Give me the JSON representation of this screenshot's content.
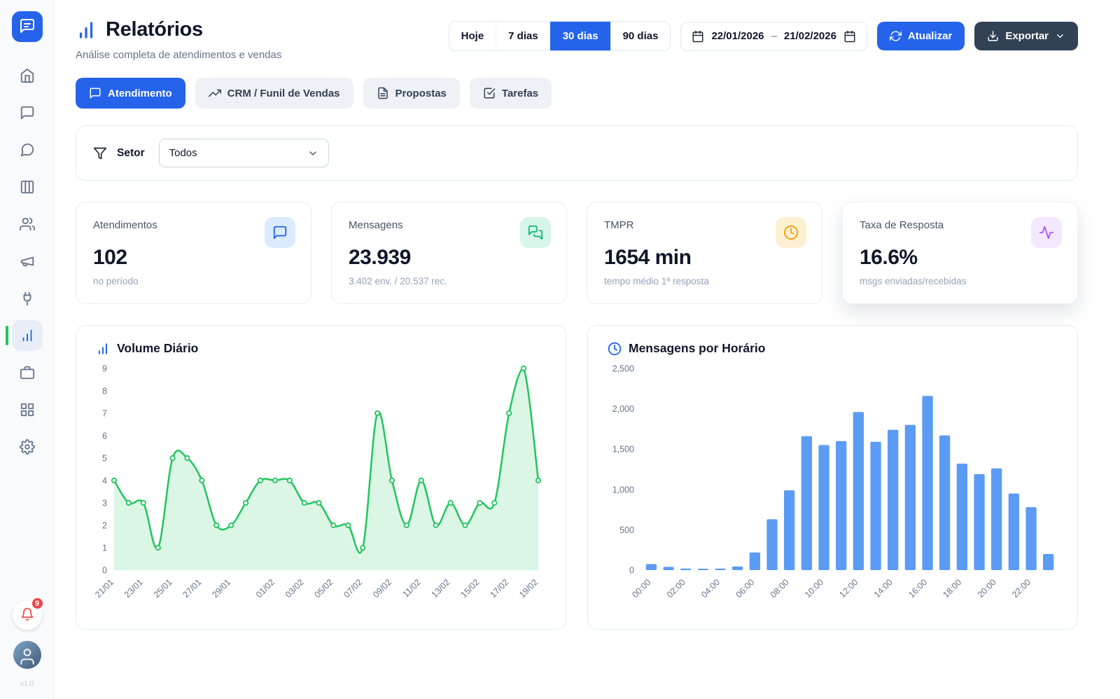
{
  "app": {
    "accent_color": "#2563eb",
    "indicator_color": "#22c55e",
    "dark_button_color": "#334155"
  },
  "sidebar": {
    "logo_icon": "chat-logo-icon",
    "items": [
      {
        "name": "home",
        "icon": "home-icon"
      },
      {
        "name": "chats",
        "icon": "message-square-icon"
      },
      {
        "name": "conversations",
        "icon": "message-circle-icon"
      },
      {
        "name": "kanban",
        "icon": "kanban-icon"
      },
      {
        "name": "contacts",
        "icon": "users-icon"
      },
      {
        "name": "campaigns",
        "icon": "megaphone-icon"
      },
      {
        "name": "integrations",
        "icon": "plug-icon"
      },
      {
        "name": "reports",
        "icon": "bar-chart-icon",
        "active": true
      },
      {
        "name": "business",
        "icon": "briefcase-icon"
      },
      {
        "name": "apps",
        "icon": "grid-icon"
      },
      {
        "name": "settings",
        "icon": "settings-icon"
      }
    ],
    "notification_count": "9",
    "version": "v1.0"
  },
  "header": {
    "title": "Relatórios",
    "subtitle": "Análise completa de atendimentos e vendas",
    "range_options": [
      "Hoje",
      "7 dias",
      "30 dias",
      "90 dias"
    ],
    "active_range": "30 dias",
    "date_from": "22/01/2026",
    "date_separator": "–",
    "date_to": "21/02/2026",
    "refresh_label": "Atualizar",
    "export_label": "Exportar"
  },
  "tabs": [
    {
      "label": "Atendimento",
      "icon": "message-square-icon",
      "active": true
    },
    {
      "label": "CRM / Funil de Vendas",
      "icon": "trending-up-icon"
    },
    {
      "label": "Propostas",
      "icon": "file-text-icon"
    },
    {
      "label": "Tarefas",
      "icon": "check-square-icon"
    }
  ],
  "filter": {
    "label": "Setor",
    "value": "Todos"
  },
  "stats": [
    {
      "label": "Atendimentos",
      "value": "102",
      "caption": "no período",
      "icon": "message-square-icon",
      "icon_color": "#2563eb",
      "icon_bg": "#dbeafe"
    },
    {
      "label": "Mensagens",
      "value": "23.939",
      "caption": "3.402 env. / 20.537 rec.",
      "icon": "messages-icon",
      "icon_color": "#10b981",
      "icon_bg": "#d7f5e9"
    },
    {
      "label": "TMPR",
      "value": "1654 min",
      "caption": "tempo médio 1ª resposta",
      "icon": "clock-icon",
      "icon_color": "#f59e0b",
      "icon_bg": "#fdf0d2"
    },
    {
      "label": "Taxa de Resposta",
      "value": "16.6%",
      "caption": "msgs enviadas/recebidas",
      "icon": "activity-icon",
      "icon_color": "#a855f7",
      "icon_bg": "#f3e8ff",
      "elevated": true
    }
  ],
  "chart_data": [
    {
      "type": "line",
      "title": "Volume Diário",
      "title_icon": "bar-chart-icon",
      "labels": [
        "21/01",
        "22/01",
        "23/01",
        "24/01",
        "25/01",
        "26/01",
        "27/01",
        "28/01",
        "29/01",
        "30/01",
        "31/01",
        "01/02",
        "02/02",
        "03/02",
        "04/02",
        "05/02",
        "06/02",
        "07/02",
        "08/02",
        "09/02",
        "10/02",
        "11/02",
        "12/02",
        "13/02",
        "14/02",
        "15/02",
        "16/02",
        "17/02",
        "18/02",
        "19/02"
      ],
      "tick_indices": [
        0,
        2,
        4,
        6,
        8,
        11,
        13,
        15,
        17,
        19,
        21,
        23,
        25,
        27,
        29
      ],
      "values": [
        4,
        3,
        3,
        1,
        5,
        5,
        4,
        2,
        2,
        3,
        4,
        4,
        4,
        3,
        3,
        2,
        2,
        1,
        7,
        4,
        2,
        4,
        2,
        3,
        2,
        3,
        3,
        7,
        9,
        4
      ],
      "ylim": [
        0,
        9
      ],
      "yticks": [
        0,
        1,
        2,
        3,
        4,
        5,
        6,
        7,
        8,
        9
      ],
      "color": "#22c55e",
      "grid": false,
      "legend": false
    },
    {
      "type": "bar",
      "title": "Mensagens por Horário",
      "title_icon": "clock-icon",
      "categories": [
        "00:00",
        "01:00",
        "02:00",
        "03:00",
        "04:00",
        "05:00",
        "06:00",
        "07:00",
        "08:00",
        "09:00",
        "10:00",
        "11:00",
        "12:00",
        "13:00",
        "14:00",
        "15:00",
        "16:00",
        "17:00",
        "18:00",
        "19:00",
        "20:00",
        "21:00",
        "22:00",
        "23:00"
      ],
      "values": [
        75,
        40,
        20,
        10,
        20,
        45,
        220,
        630,
        990,
        1660,
        1550,
        1600,
        1960,
        1590,
        1740,
        1800,
        2160,
        1670,
        1320,
        1190,
        1260,
        950,
        780,
        200
      ],
      "ylim": [
        0,
        2500
      ],
      "yticks": [
        0,
        500,
        1000,
        1500,
        2000,
        2500
      ],
      "ytick_labels": [
        "0",
        "500",
        "1,000",
        "1,500",
        "2,000",
        "2,500"
      ],
      "color": "#5b9bf3",
      "grid": false,
      "legend": false
    }
  ]
}
